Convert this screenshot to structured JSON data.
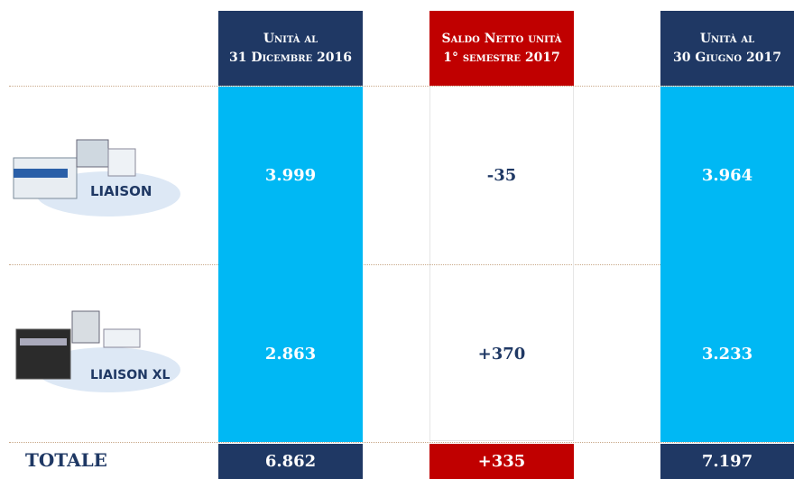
{
  "table": {
    "header": [
      [
        "Unità al",
        "31 Dicembre 2016"
      ],
      [
        "Saldo Netto unità",
        "1° semestre 2017"
      ],
      [
        "Unità al",
        "30 Giugno 2017"
      ]
    ],
    "rows": [
      {
        "label": "LIAISON",
        "values": [
          "3.999",
          "-35",
          "3.964"
        ]
      },
      {
        "label": "LIAISON XL",
        "values": [
          "2.863",
          "+370",
          "3.233"
        ]
      }
    ],
    "total": {
      "label": "TOTALE",
      "values": [
        "6.862",
        "+335",
        "7.197"
      ]
    }
  }
}
